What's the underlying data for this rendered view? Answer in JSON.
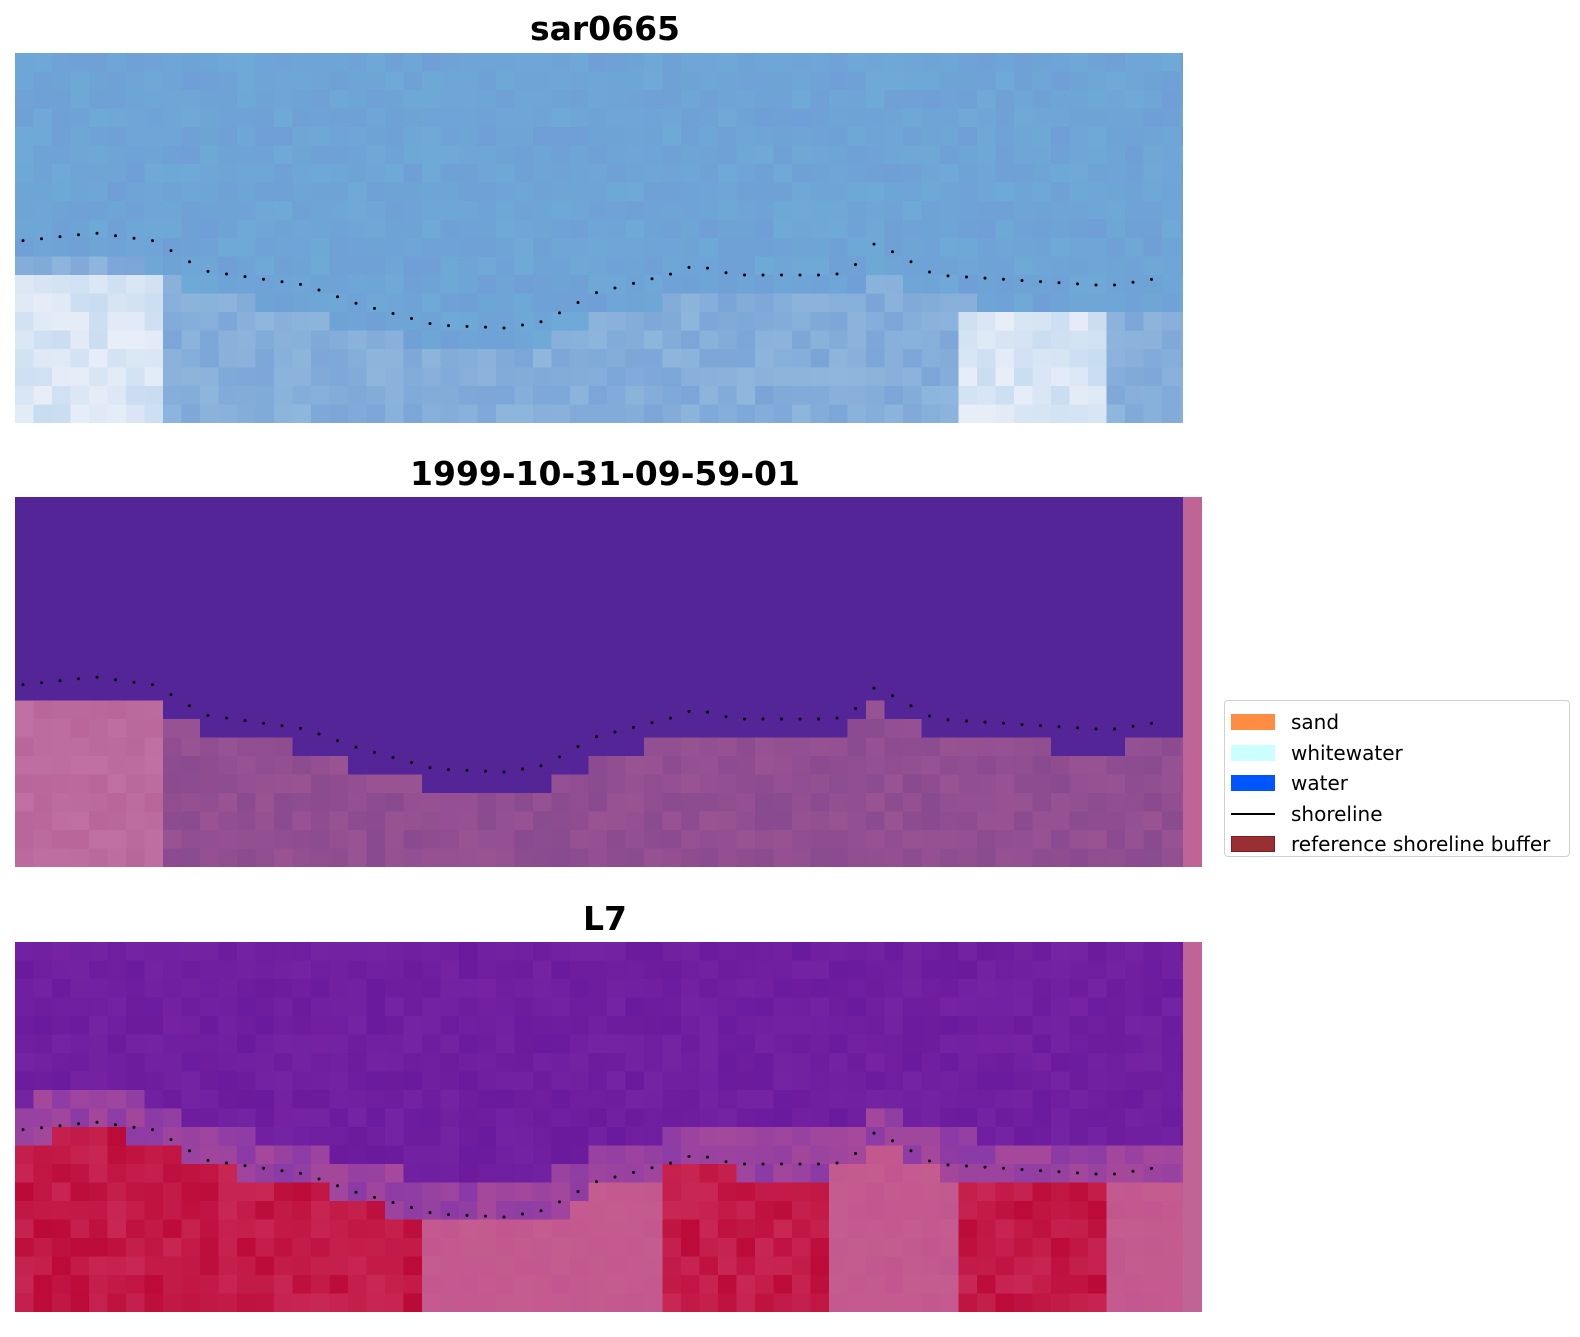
{
  "panels": [
    {
      "title": "sar0665"
    },
    {
      "title": "1999-10-31-09-59-01"
    },
    {
      "title": "L7"
    }
  ],
  "legend": {
    "items": [
      {
        "label": "sand",
        "color": "#ff8c42",
        "kind": "patch"
      },
      {
        "label": "whitewater",
        "color": "#ccffff",
        "kind": "patch"
      },
      {
        "label": "water",
        "color": "#0055ff",
        "kind": "patch"
      },
      {
        "label": "shoreline",
        "color": "#000000",
        "kind": "line"
      },
      {
        "label": "reference shoreline buffer",
        "color": "#992f35",
        "kind": "patch"
      }
    ]
  },
  "colors": {
    "sar_water": "#6f9fd6",
    "sar_foam": "#e8eef8",
    "class_water": "#532597",
    "class_land": "#8a4a8f",
    "class_buffer_edge": "#c06496",
    "l7_water": "#6a1a9c",
    "l7_land": "#bc0a38",
    "l7_mid": "#c2578f",
    "shoreline_dot": "#000000"
  }
}
